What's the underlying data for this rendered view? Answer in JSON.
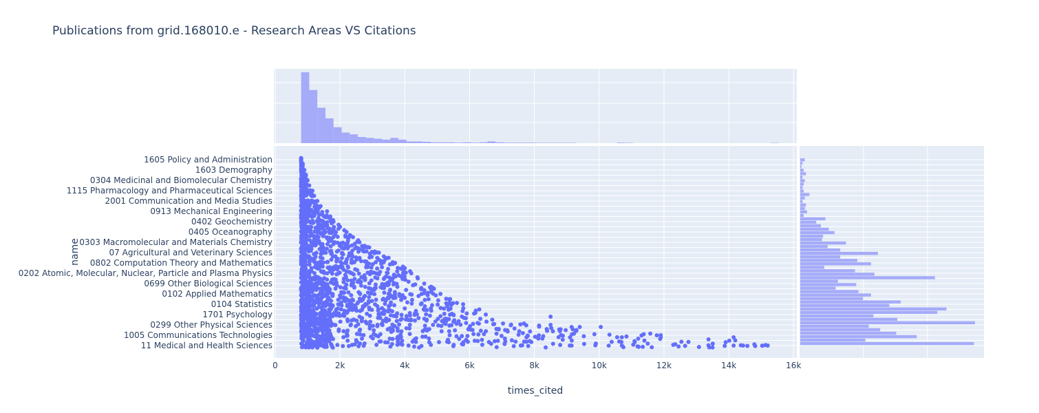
{
  "chart_data": {
    "type": "scatter",
    "title": "Publications from grid.168010.e - Research Areas VS Citations",
    "xlabel": "times_cited",
    "ylabel": "name",
    "xlim": [
      0,
      16100
    ],
    "x_ticks": [
      0,
      2000,
      4000,
      6000,
      8000,
      10000,
      12000,
      14000,
      16000
    ],
    "x_tick_labels": [
      "0",
      "2k",
      "4k",
      "6k",
      "8k",
      "10k",
      "12k",
      "14k",
      "16k"
    ],
    "y_tick_labels": [
      "1605 Policy and Administration",
      "1603 Demography",
      "0304 Medicinal and Biomolecular Chemistry",
      "1115 Pharmacology and Pharmaceutical Sciences",
      "2001 Communication and Media Studies",
      "0913 Mechanical Engineering",
      "0402 Geochemistry",
      "0405 Oceanography",
      "0303 Macromolecular and Materials Chemistry",
      "07 Agricultural and Veterinary Sciences",
      "0802 Computation Theory and Mathematics",
      "0202 Atomic, Molecular, Nuclear, Particle and Plasma Physics",
      "0699 Other Biological Sciences",
      "0102 Applied Mathematics",
      "0104 Statistics",
      "1701 Psychology",
      "0299 Other Physical Sciences",
      "1005 Communications Technologies",
      "11 Medical and Health Sciences"
    ],
    "category_count": 37,
    "category_max_citations": [
      800,
      850,
      900,
      950,
      1000,
      1050,
      1150,
      1200,
      1300,
      1400,
      1600,
      1700,
      1800,
      2000,
      2200,
      2400,
      2600,
      2900,
      3200,
      3500,
      3700,
      4000,
      4200,
      4400,
      4600,
      4900,
      5100,
      5400,
      5800,
      6300,
      6500,
      6700,
      8500,
      9300,
      11900,
      14200,
      15200
    ],
    "outliers": [
      {
        "x": 8500,
        "row": 15
      },
      {
        "x": 9150,
        "row": 16
      },
      {
        "x": 9400,
        "row": 16
      },
      {
        "x": 9100,
        "row": 17
      },
      {
        "x": 10050,
        "row": 16
      },
      {
        "x": 10700,
        "row": 17
      },
      {
        "x": 11900,
        "row": 17
      },
      {
        "x": 14150,
        "row": 17
      },
      {
        "x": 14150,
        "row": 18
      },
      {
        "x": 15200,
        "row": 18
      },
      {
        "x": 9150,
        "row": 18
      },
      {
        "x": 10700,
        "row": 18
      }
    ],
    "marginal_x_histogram": [
      4,
      3,
      2,
      1.4,
      0.9,
      0.6,
      0.5,
      0.35,
      0.3,
      0.25,
      0.2,
      0.3,
      0.2,
      0.1,
      0.1,
      0.08,
      0.05,
      0.05,
      0.05,
      0.03,
      0.05,
      0.03,
      0.05,
      0.1,
      0.05,
      0.03,
      0.03,
      0.03,
      0.03,
      0.02,
      0.02,
      0.02,
      0.02,
      0.02,
      0,
      0,
      0,
      0,
      0,
      0.03,
      0.02,
      0,
      0,
      0,
      0,
      0,
      0,
      0,
      0,
      0,
      0,
      0,
      0,
      0,
      0,
      0,
      0,
      0,
      0.02,
      0,
      0,
      0
    ],
    "marginal_y_counts": [
      4,
      2,
      1,
      3,
      5,
      2,
      4,
      3,
      2,
      3,
      8,
      4,
      2,
      5,
      4,
      6,
      3,
      22,
      14,
      18,
      25,
      30,
      20,
      19,
      40,
      24,
      35,
      68,
      35,
      50,
      62,
      21,
      48,
      65,
      118,
      33,
      49,
      31,
      51,
      62,
      55,
      88,
      78,
      128,
      120,
      64,
      85,
      153,
      60,
      70,
      84,
      102,
      57,
      152
    ],
    "colors": {
      "marker": "#636efa",
      "histogram": "#a5abf8",
      "plot_bg": "#e5ecf6",
      "grid": "#ffffff",
      "text": "#2a3f5f"
    }
  }
}
